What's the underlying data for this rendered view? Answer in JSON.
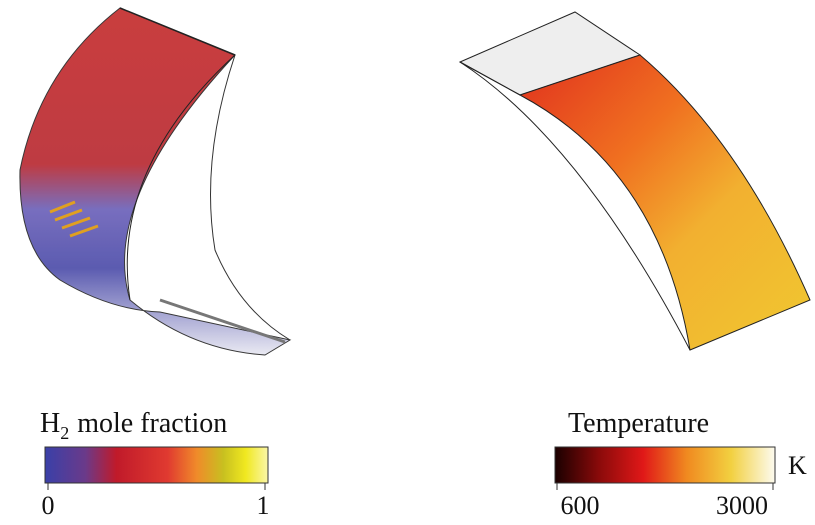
{
  "left_panel": {
    "colorbar": {
      "label": {
        "base": "H",
        "subscript": "2",
        "rest": "mole fraction"
      },
      "min_label": "0",
      "max_label": "1"
    }
  },
  "right_panel": {
    "colorbar": {
      "label": "Temperature",
      "unit": "K",
      "min_label": "600",
      "max_label": "3000"
    }
  }
}
